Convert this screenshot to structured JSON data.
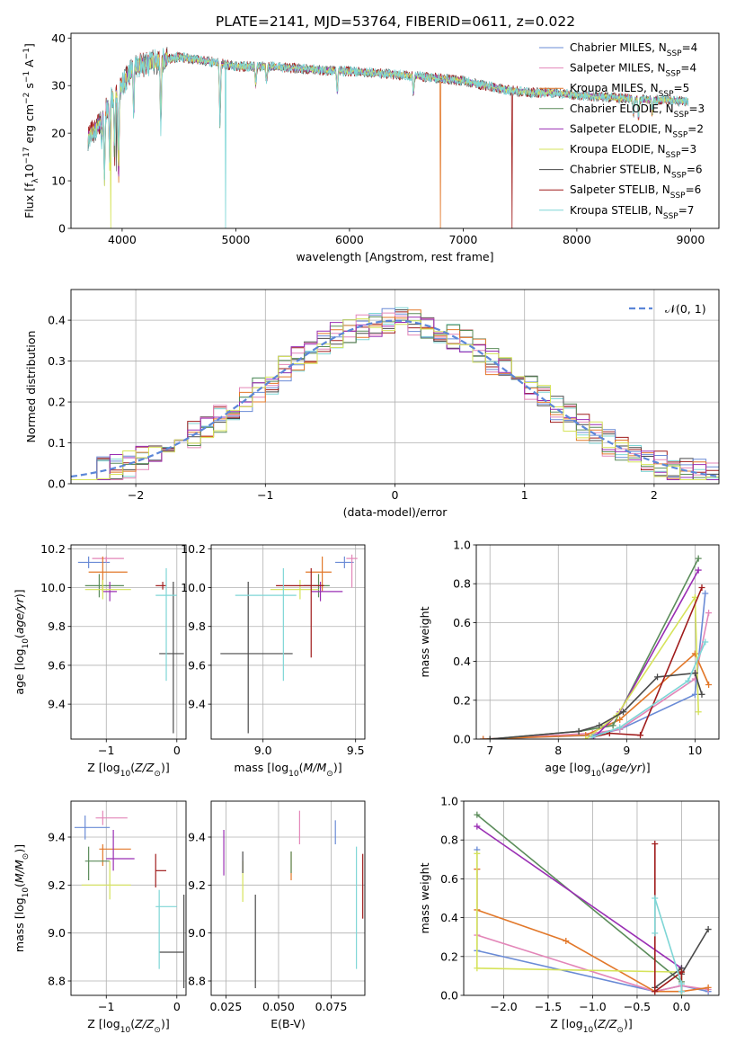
{
  "figure_title": "PLATE=2141, MJD=53764, FIBERID=0611, z=0.022",
  "models": [
    {
      "name": "Chabrier MILES",
      "n": "4",
      "color": "#6a8bd6"
    },
    {
      "name": "Salpeter MILES",
      "n": "4",
      "color": "#e386b8"
    },
    {
      "name": "Kroupa MILES",
      "n": "5",
      "color": "#e2782a"
    },
    {
      "name": "Chabrier ELODIE",
      "n": "3",
      "color": "#5b8c5a"
    },
    {
      "name": "Salpeter ELODIE",
      "n": "2",
      "color": "#9a2fb4"
    },
    {
      "name": "Kroupa ELODIE",
      "n": "3",
      "color": "#d6e35a"
    },
    {
      "name": "Chabrier STELIB",
      "n": "6",
      "color": "#4a4a4a"
    },
    {
      "name": "Salpeter STELIB",
      "n": "6",
      "color": "#a01c1c"
    },
    {
      "name": "Kroupa STELIB",
      "n": "7",
      "color": "#7ed6d6"
    }
  ],
  "chart_data": [
    {
      "id": "spectrum",
      "type": "line",
      "title": "PLATE=2141, MJD=53764, FIBERID=0611, z=0.022",
      "xlabel": "wavelength [Angstrom, rest frame]",
      "ylabel": "Flux [f_λ10^-17 erg cm^-2 s^-1 A^-1]",
      "xlim": [
        3550,
        9250
      ],
      "ylim": [
        0,
        41
      ],
      "xticks": [
        4000,
        5000,
        6000,
        7000,
        8000,
        9000
      ],
      "yticks": [
        0,
        10,
        20,
        30,
        40
      ],
      "grid": false,
      "legend_position": "top-right",
      "continuum": [
        [
          3700,
          19
        ],
        [
          3800,
          22
        ],
        [
          3900,
          27
        ],
        [
          4000,
          30
        ],
        [
          4100,
          34
        ],
        [
          4300,
          35
        ],
        [
          4500,
          36
        ],
        [
          4800,
          35
        ],
        [
          5000,
          34
        ],
        [
          5300,
          34
        ],
        [
          5600,
          33.5
        ],
        [
          6000,
          33
        ],
        [
          6300,
          32.5
        ],
        [
          6600,
          32
        ],
        [
          6800,
          31.5
        ],
        [
          7000,
          31
        ],
        [
          7200,
          30
        ],
        [
          7400,
          29
        ],
        [
          7600,
          28.5
        ],
        [
          7800,
          28.5
        ],
        [
          8000,
          28
        ],
        [
          8300,
          27.5
        ],
        [
          8600,
          27
        ],
        [
          8800,
          27
        ],
        [
          9000,
          26.5
        ]
      ],
      "absorption_lines": [
        [
          3820,
          4
        ],
        [
          3845,
          13
        ],
        [
          3890,
          12
        ],
        [
          3934,
          12
        ],
        [
          3968,
          18
        ],
        [
          4102,
          10
        ],
        [
          4340,
          12
        ],
        [
          4861,
          12
        ],
        [
          5175,
          4
        ],
        [
          5270,
          3
        ],
        [
          5892,
          5
        ],
        [
          6563,
          4
        ],
        [
          8498,
          3
        ],
        [
          8542,
          4
        ],
        [
          8662,
          3
        ]
      ],
      "series_dropouts": [
        {
          "series": "Kroupa ELODIE",
          "x": 3900,
          "to": 0
        },
        {
          "series": "Kroupa STELIB",
          "x": 4910,
          "to": 0
        },
        {
          "series": "Kroupa MILES",
          "x": 6800,
          "to": 0
        },
        {
          "series": "Salpeter STELIB",
          "x": 7430,
          "to": 0
        },
        {
          "series": "Chabrier STELIB",
          "x": 3950,
          "to": 12
        }
      ]
    },
    {
      "id": "residuals",
      "type": "histogram",
      "xlabel": "(data-model)/error",
      "ylabel": "Normed distribution",
      "xlim": [
        -2.5,
        2.5
      ],
      "ylim": [
        0,
        0.475
      ],
      "xticks": [
        -2,
        -1,
        0,
        1,
        2
      ],
      "yticks": [
        0.0,
        0.1,
        0.2,
        0.3,
        0.4
      ],
      "grid": true,
      "legend_position": "top-right",
      "reference_label": "𝒩(0, 1)",
      "reference_color": "#5b86d8",
      "bin_width": 0.1,
      "bin_start": -2.5
    },
    {
      "id": "age_vs_Z",
      "type": "errorbar",
      "xlabel": "Z [log10(Z/Z⊙)]",
      "ylabel": "age  [log10(age/yr)]",
      "xlim": [
        -1.5,
        0.13
      ],
      "ylim": [
        9.22,
        10.22
      ],
      "xticks": [
        -1,
        0
      ],
      "yticks": [
        9.4,
        9.6,
        9.8,
        10.0,
        10.2
      ],
      "grid": true,
      "points": [
        {
          "series": "Chabrier MILES",
          "x": -1.25,
          "xlo": -1.4,
          "xhi": -0.95,
          "y": 10.13,
          "ylo": 10.1,
          "yhi": 10.16
        },
        {
          "series": "Salpeter MILES",
          "x": -1.0,
          "xlo": -1.2,
          "xhi": -0.75,
          "y": 10.15,
          "ylo": 10.13,
          "yhi": 10.16
        },
        {
          "series": "Kroupa MILES",
          "x": -1.05,
          "xlo": -1.25,
          "xhi": -0.7,
          "y": 10.08,
          "ylo": 9.98,
          "yhi": 10.16
        },
        {
          "series": "Chabrier ELODIE",
          "x": -1.1,
          "xlo": -1.3,
          "xhi": -0.75,
          "y": 10.01,
          "ylo": 9.95,
          "yhi": 10.07
        },
        {
          "series": "Salpeter ELODIE",
          "x": -0.95,
          "xlo": -1.05,
          "xhi": -0.85,
          "y": 9.98,
          "ylo": 9.93,
          "yhi": 10.03
        },
        {
          "series": "Kroupa ELODIE",
          "x": -1.05,
          "xlo": -1.3,
          "xhi": -0.65,
          "y": 9.99,
          "ylo": 9.94,
          "yhi": 10.04
        },
        {
          "series": "Chabrier STELIB",
          "x": -0.05,
          "xlo": -0.25,
          "xhi": 0.1,
          "y": 9.66,
          "ylo": 9.25,
          "yhi": 10.03
        },
        {
          "series": "Salpeter STELIB",
          "x": -0.2,
          "xlo": -0.3,
          "xhi": -0.15,
          "y": 10.01,
          "ylo": 9.99,
          "yhi": 10.03
        },
        {
          "series": "Kroupa STELIB",
          "x": -0.15,
          "xlo": -0.3,
          "xhi": -0.0,
          "y": 9.96,
          "ylo": 9.52,
          "yhi": 10.1
        }
      ]
    },
    {
      "id": "age_vs_mass",
      "type": "errorbar",
      "xlabel": "mass [log10(M/M⊙)]",
      "ylabel": "",
      "xlim": [
        8.72,
        9.55
      ],
      "ylim": [
        9.22,
        10.22
      ],
      "xticks": [
        9.0,
        9.5
      ],
      "yticks": [
        9.4,
        9.6,
        9.8,
        10.0,
        10.2
      ],
      "grid": true,
      "points": [
        {
          "series": "Chabrier MILES",
          "x": 9.44,
          "xlo": 9.39,
          "xhi": 9.49,
          "y": 10.13,
          "ylo": 10.1,
          "yhi": 10.16
        },
        {
          "series": "Salpeter MILES",
          "x": 9.48,
          "xlo": 9.45,
          "xhi": 9.51,
          "y": 10.15,
          "ylo": 10.0,
          "yhi": 10.17
        },
        {
          "series": "Kroupa MILES",
          "x": 9.32,
          "xlo": 9.23,
          "xhi": 9.37,
          "y": 10.08,
          "ylo": 9.98,
          "yhi": 10.16
        },
        {
          "series": "Chabrier ELODIE",
          "x": 9.3,
          "xlo": 9.22,
          "xhi": 9.36,
          "y": 10.01,
          "ylo": 9.95,
          "yhi": 10.07
        },
        {
          "series": "Salpeter ELODIE",
          "x": 9.31,
          "xlo": 9.26,
          "xhi": 9.43,
          "y": 9.98,
          "ylo": 9.93,
          "yhi": 10.03
        },
        {
          "series": "Kroupa ELODIE",
          "x": 9.2,
          "xlo": 9.04,
          "xhi": 9.3,
          "y": 9.99,
          "ylo": 9.94,
          "yhi": 10.04
        },
        {
          "series": "Chabrier STELIB",
          "x": 8.92,
          "xlo": 8.77,
          "xhi": 9.16,
          "y": 9.66,
          "ylo": 9.25,
          "yhi": 10.03
        },
        {
          "series": "Salpeter STELIB",
          "x": 9.26,
          "xlo": 9.07,
          "xhi": 9.33,
          "y": 10.01,
          "ylo": 9.64,
          "yhi": 10.1
        },
        {
          "series": "Kroupa STELIB",
          "x": 9.11,
          "xlo": 8.85,
          "xhi": 9.18,
          "y": 9.96,
          "ylo": 9.52,
          "yhi": 10.1
        }
      ]
    },
    {
      "id": "weight_vs_age",
      "type": "line",
      "xlabel": "age  [log10(age/yr)]",
      "ylabel": "mass weight",
      "xlim": [
        6.8,
        10.35
      ],
      "ylim": [
        0,
        1.0
      ],
      "xticks": [
        7,
        8,
        9,
        10
      ],
      "yticks": [
        0.0,
        0.2,
        0.4,
        0.6,
        0.8,
        1.0
      ],
      "grid": true,
      "series": [
        {
          "name": "Chabrier MILES",
          "x": [
            6.9,
            8.5,
            8.9,
            10.0,
            10.15
          ],
          "y": [
            0.0,
            0.02,
            0.05,
            0.23,
            0.75
          ]
        },
        {
          "name": "Salpeter MILES",
          "x": [
            6.9,
            8.5,
            8.9,
            10.0,
            10.2
          ],
          "y": [
            0.0,
            0.03,
            0.05,
            0.31,
            0.65
          ]
        },
        {
          "name": "Kroupa MILES",
          "x": [
            6.9,
            8.4,
            8.9,
            10.0,
            10.2
          ],
          "y": [
            0.0,
            0.02,
            0.1,
            0.44,
            0.28
          ]
        },
        {
          "name": "Chabrier ELODIE",
          "x": [
            7.0,
            8.3,
            8.8,
            10.05
          ],
          "y": [
            0.0,
            0.04,
            0.07,
            0.93
          ]
        },
        {
          "name": "Salpeter ELODIE",
          "x": [
            8.5,
            8.9,
            10.05
          ],
          "y": [
            0.0,
            0.14,
            0.87
          ]
        },
        {
          "name": "Kroupa ELODIE",
          "x": [
            8.4,
            8.85,
            10.0,
            10.05
          ],
          "y": [
            0.0,
            0.12,
            0.73,
            0.14
          ]
        },
        {
          "name": "Chabrier STELIB",
          "x": [
            7.0,
            8.3,
            8.6,
            8.95,
            9.45,
            10.0,
            10.1
          ],
          "y": [
            0.0,
            0.04,
            0.07,
            0.14,
            0.32,
            0.34,
            0.23
          ]
        },
        {
          "name": "Salpeter STELIB",
          "x": [
            8.5,
            8.75,
            9.2,
            10.1
          ],
          "y": [
            0.01,
            0.03,
            0.02,
            0.78
          ]
        },
        {
          "name": "Kroupa STELIB",
          "x": [
            8.5,
            8.9,
            9.9,
            10.15
          ],
          "y": [
            0.01,
            0.06,
            0.3,
            0.5
          ]
        }
      ]
    },
    {
      "id": "mass_vs_Z",
      "type": "errorbar",
      "xlabel": "Z [log10(Z/Z⊙)]",
      "ylabel": "mass [log10(M/M⊙)]",
      "xlim": [
        -1.5,
        0.13
      ],
      "ylim": [
        8.74,
        9.55
      ],
      "xticks": [
        -1,
        0
      ],
      "yticks": [
        8.8,
        9.0,
        9.2,
        9.4
      ],
      "grid": true,
      "points": [
        {
          "series": "Chabrier MILES",
          "x": -1.3,
          "xlo": -1.45,
          "xhi": -0.95,
          "y": 9.44,
          "ylo": 9.39,
          "yhi": 9.49
        },
        {
          "series": "Salpeter MILES",
          "x": -1.05,
          "xlo": -1.15,
          "xhi": -0.7,
          "y": 9.48,
          "ylo": 9.45,
          "yhi": 9.51
        },
        {
          "series": "Kroupa MILES",
          "x": -1.05,
          "xlo": -1.1,
          "xhi": -0.65,
          "y": 9.35,
          "ylo": 9.28,
          "yhi": 9.37
        },
        {
          "series": "Chabrier ELODIE",
          "x": -1.25,
          "xlo": -1.3,
          "xhi": -0.95,
          "y": 9.3,
          "ylo": 9.22,
          "yhi": 9.36
        },
        {
          "series": "Salpeter ELODIE",
          "x": -0.9,
          "xlo": -1.0,
          "xhi": -0.6,
          "y": 9.31,
          "ylo": 9.26,
          "yhi": 9.43
        },
        {
          "series": "Kroupa ELODIE",
          "x": -0.95,
          "xlo": -1.35,
          "xhi": -0.65,
          "y": 9.2,
          "ylo": 9.14,
          "yhi": 9.3
        },
        {
          "series": "Chabrier STELIB",
          "x": 0.1,
          "xlo": -0.25,
          "xhi": 0.1,
          "y": 8.92,
          "ylo": 8.77,
          "yhi": 9.16
        },
        {
          "series": "Salpeter STELIB",
          "x": -0.3,
          "xlo": -0.3,
          "xhi": -0.15,
          "y": 9.26,
          "ylo": 9.19,
          "yhi": 9.33
        },
        {
          "series": "Kroupa STELIB",
          "x": -0.25,
          "xlo": -0.3,
          "xhi": 0.0,
          "y": 9.11,
          "ylo": 8.85,
          "yhi": 9.18
        }
      ]
    },
    {
      "id": "mass_vs_EBV",
      "type": "errorbar",
      "xlabel": "E(B-V)",
      "ylabel": "",
      "xlim": [
        0.018,
        0.091
      ],
      "ylim": [
        8.74,
        9.55
      ],
      "xticks": [
        0.025,
        0.05,
        0.075
      ],
      "yticks": [
        8.8,
        9.0,
        9.2,
        9.4
      ],
      "grid": true,
      "points": [
        {
          "series": "Chabrier MILES",
          "x": 0.077,
          "y": 9.42,
          "ylo": 9.37,
          "yhi": 9.47
        },
        {
          "series": "Salpeter MILES",
          "x": 0.06,
          "y": 9.44,
          "ylo": 9.37,
          "yhi": 9.51
        },
        {
          "series": "Kroupa MILES",
          "x": 0.056,
          "y": 9.28,
          "ylo": 9.22,
          "yhi": 9.34
        },
        {
          "series": "Chabrier ELODIE",
          "x": 0.056,
          "y": 9.3,
          "ylo": 9.25,
          "yhi": 9.34
        },
        {
          "series": "Salpeter ELODIE",
          "x": 0.024,
          "y": 9.33,
          "ylo": 9.24,
          "yhi": 9.43
        },
        {
          "series": "Kroupa ELODIE",
          "x": 0.033,
          "y": 9.2,
          "ylo": 9.13,
          "yhi": 9.3
        },
        {
          "series": "Chabrier STELIB",
          "x": 0.039,
          "y": 8.97,
          "ylo": 8.77,
          "yhi": 9.16
        },
        {
          "series": "Chabrier STELIB",
          "x": 0.033,
          "y": 9.29,
          "ylo": 9.25,
          "yhi": 9.34
        },
        {
          "series": "Salpeter STELIB",
          "x": 0.09,
          "y": 9.2,
          "ylo": 9.06,
          "yhi": 9.33
        },
        {
          "series": "Kroupa STELIB",
          "x": 0.087,
          "y": 9.1,
          "ylo": 8.85,
          "yhi": 9.36
        }
      ]
    },
    {
      "id": "weight_vs_Z",
      "type": "line",
      "xlabel": "Z [log10(Z/Z⊙)]",
      "ylabel": "mass weight",
      "xlim": [
        -2.45,
        0.42
      ],
      "ylim": [
        0,
        1.0
      ],
      "xticks": [
        -2.0,
        -1.5,
        -1.0,
        -0.5,
        0.0
      ],
      "yticks": [
        0.0,
        0.2,
        0.4,
        0.6,
        0.8,
        1.0
      ],
      "grid": true,
      "series": [
        {
          "name": "Chabrier MILES",
          "x": [
            -2.3,
            -2.3,
            -0.3,
            -0.0,
            0.3
          ],
          "y": [
            0.75,
            0.23,
            0.02,
            0.05,
            0.02
          ]
        },
        {
          "name": "Salpeter MILES",
          "x": [
            -2.3,
            -2.3,
            -0.3,
            0.0,
            0.3
          ],
          "y": [
            0.65,
            0.31,
            0.02,
            0.05,
            0.03
          ]
        },
        {
          "name": "Kroupa MILES",
          "x": [
            -2.3,
            -2.3,
            -1.3,
            -0.3,
            0.0,
            0.3
          ],
          "y": [
            0.65,
            0.44,
            0.28,
            0.02,
            0.02,
            0.04
          ]
        },
        {
          "name": "Chabrier ELODIE",
          "x": [
            -2.3,
            0.0
          ],
          "y": [
            0.93,
            0.07
          ]
        },
        {
          "name": "Salpeter ELODIE",
          "x": [
            -2.3,
            0.0
          ],
          "y": [
            0.87,
            0.14
          ]
        },
        {
          "name": "Kroupa ELODIE",
          "x": [
            -2.3,
            -2.3,
            0.0,
            0.0
          ],
          "y": [
            0.73,
            0.14,
            0.12,
            0.0
          ]
        },
        {
          "name": "Chabrier STELIB",
          "x": [
            -0.3,
            -0.0,
            0.0,
            0.3
          ],
          "y": [
            0.04,
            0.14,
            0.11,
            0.34
          ]
        },
        {
          "name": "Salpeter STELIB",
          "x": [
            -0.3,
            -0.3,
            0.0,
            0.0
          ],
          "y": [
            0.78,
            0.02,
            0.12,
            0.02
          ]
        },
        {
          "name": "Kroupa STELIB",
          "x": [
            -0.3,
            -0.3,
            0.0,
            0.0
          ],
          "y": [
            0.32,
            0.5,
            0.06,
            0.02
          ]
        }
      ]
    }
  ]
}
